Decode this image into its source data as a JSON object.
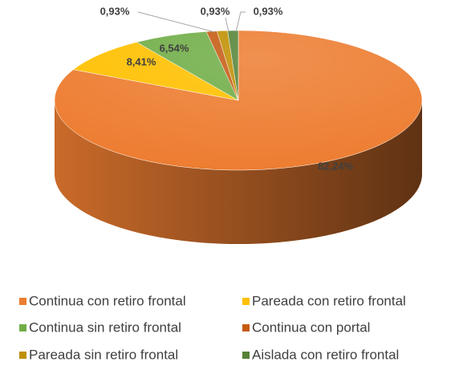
{
  "chart_data": {
    "type": "pie3d",
    "categories": [
      "Continua con retiro frontal",
      "Pareada con retiro frontal",
      "Continua sin retiro frontal",
      "Continua con portal",
      "Pareada sin retiro frontal",
      "Aislada con retiro frontal"
    ],
    "values": [
      82.24,
      8.41,
      6.54,
      0.93,
      0.93,
      0.93
    ],
    "value_labels": [
      "82,24%",
      "8,41%",
      "6,54%",
      "0,93%",
      "0,93%",
      "0,93%"
    ],
    "colors": [
      "#ED7D31",
      "#FFC000",
      "#70AD47",
      "#C55A11",
      "#BF8F00",
      "#548235"
    ],
    "legend": "bottom"
  }
}
